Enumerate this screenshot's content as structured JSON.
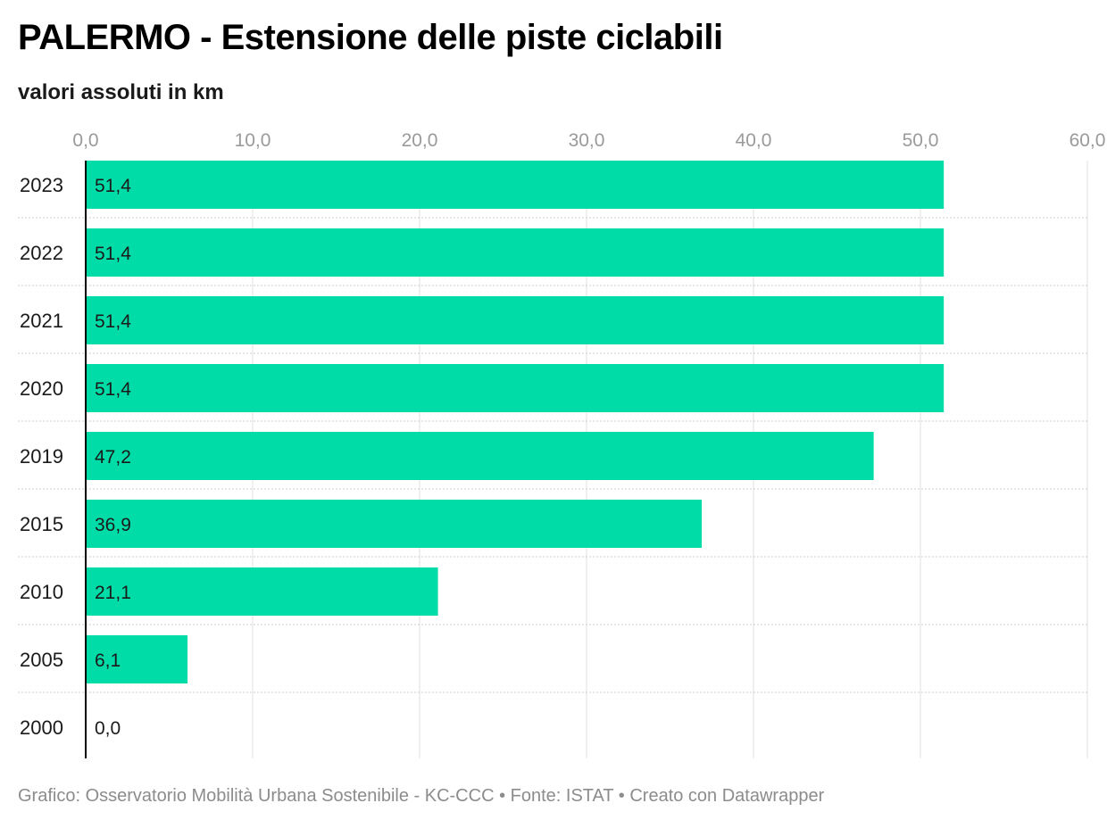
{
  "title": "PALERMO - Estensione delle piste ciclabili",
  "subtitle": "valori assoluti in km",
  "footer": {
    "source_line": "Grafico: Osservatorio Mobilità Urbana Sostenibile - KC-CCC • Fonte: ISTAT • Creato con Datawrapper"
  },
  "colors": {
    "bar": "#00dca8",
    "gridline": "#e0e0e0",
    "row_separator": "#cccccc",
    "axis_line": "#000000"
  },
  "chart_data": {
    "type": "bar",
    "orientation": "horizontal",
    "categories": [
      "2023",
      "2022",
      "2021",
      "2020",
      "2019",
      "2015",
      "2010",
      "2005",
      "2000"
    ],
    "values": [
      51.4,
      51.4,
      51.4,
      51.4,
      47.2,
      36.9,
      21.1,
      6.1,
      0.0
    ],
    "value_labels": [
      "51,4",
      "51,4",
      "51,4",
      "51,4",
      "47,2",
      "36,9",
      "21,1",
      "6,1",
      "0,0"
    ],
    "xlim": [
      0,
      60
    ],
    "x_ticks": [
      0,
      10,
      20,
      30,
      40,
      50,
      60
    ],
    "x_tick_labels": [
      "0,0",
      "10,0",
      "20,0",
      "30,0",
      "40,0",
      "50,0",
      "60,0"
    ],
    "x_axis_position": "top",
    "grid": true
  }
}
